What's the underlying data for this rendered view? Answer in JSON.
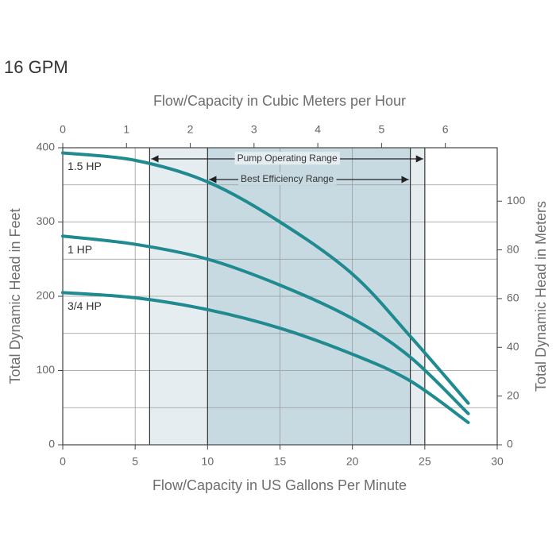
{
  "title": "16 GPM",
  "chart_data": {
    "type": "line",
    "x_label": "Flow/Capacity in US Gallons Per Minute",
    "x2_label": "Flow/Capacity in Cubic Meters per Hour",
    "y_label": "Total Dynamic Head in Feet",
    "y2_label": "Total Dynamic Head in Meters",
    "xlim": [
      0,
      30
    ],
    "xticks": [
      0,
      5,
      10,
      15,
      20,
      25,
      30
    ],
    "x2lim": [
      0,
      6.814
    ],
    "x2ticks": [
      0,
      1,
      2,
      3,
      4,
      5,
      6
    ],
    "ylim": [
      0,
      400
    ],
    "yticks": [
      0,
      100,
      200,
      300,
      400
    ],
    "y2lim": [
      0,
      121.92
    ],
    "y2ticks": [
      0,
      20,
      40,
      60,
      80,
      100
    ],
    "xgrid": [
      5,
      15,
      20
    ],
    "ygrid": [
      50,
      100,
      150,
      200,
      250,
      300,
      350
    ],
    "regions": [
      {
        "label": "Pump Operating Range",
        "start": 6,
        "end": 25,
        "color": "#e6edf1"
      },
      {
        "label": "Best Efficiency Range",
        "start": 10,
        "end": 24,
        "color": "#c8dae1"
      }
    ],
    "x": [
      0,
      5,
      10,
      15,
      20,
      24,
      28
    ],
    "series": [
      {
        "name": "1.5 HP",
        "color": "#1f8a8f",
        "values": [
          393,
          383,
          354,
          300,
          230,
          146,
          56
        ]
      },
      {
        "name": "1 HP",
        "color": "#1f8a8f",
        "values": [
          281,
          270,
          250,
          215,
          170,
          118,
          42
        ]
      },
      {
        "name": "3/4 HP",
        "color": "#1f8a8f",
        "values": [
          205,
          198,
          182,
          157,
          122,
          86,
          30
        ]
      }
    ]
  }
}
